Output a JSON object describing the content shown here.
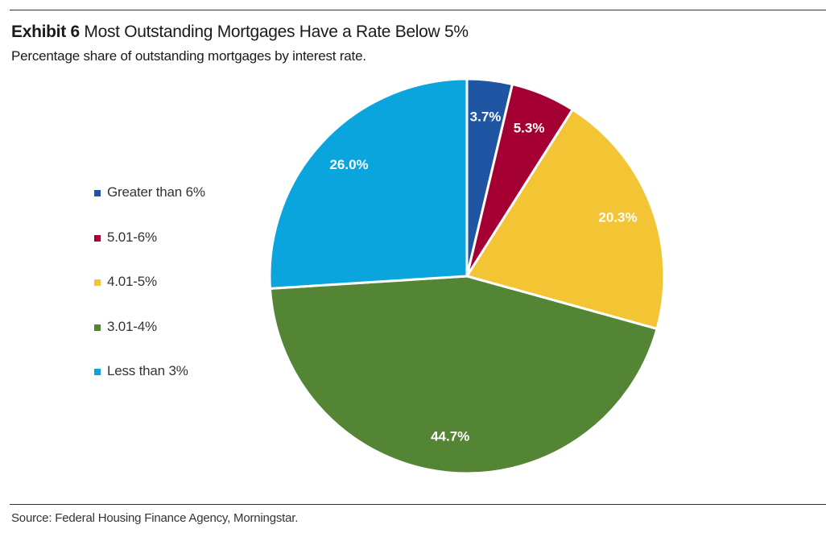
{
  "header": {
    "title_lead": "Exhibit 6",
    "title_rest": "Most Outstanding Mortgages Have a Rate Below 5%",
    "subtitle": "Percentage share of outstanding mortgages by interest rate."
  },
  "footer": {
    "source": "Source: Federal Housing Finance Agency, Morningstar."
  },
  "chart_data": {
    "type": "pie",
    "title": "Most Outstanding Mortgages Have a Rate Below 5%",
    "subtitle": "Percentage share of outstanding mortgages by interest rate.",
    "legend_position": "left",
    "start": "12 o'clock, clockwise",
    "slices": [
      {
        "label": "Greater than 6%",
        "value": 3.7,
        "display": "3.7%",
        "color": "#1f55a3"
      },
      {
        "label": "5.01-6%",
        "value": 5.3,
        "display": "5.3%",
        "color": "#a50034"
      },
      {
        "label": "4.01-5%",
        "value": 20.3,
        "display": "20.3%",
        "color": "#f3c433"
      },
      {
        "label": "3.01-4%",
        "value": 44.7,
        "display": "44.7%",
        "color": "#538534"
      },
      {
        "label": "Less than 3%",
        "value": 26.0,
        "display": "26.0%",
        "color": "#0ba5de"
      }
    ]
  }
}
